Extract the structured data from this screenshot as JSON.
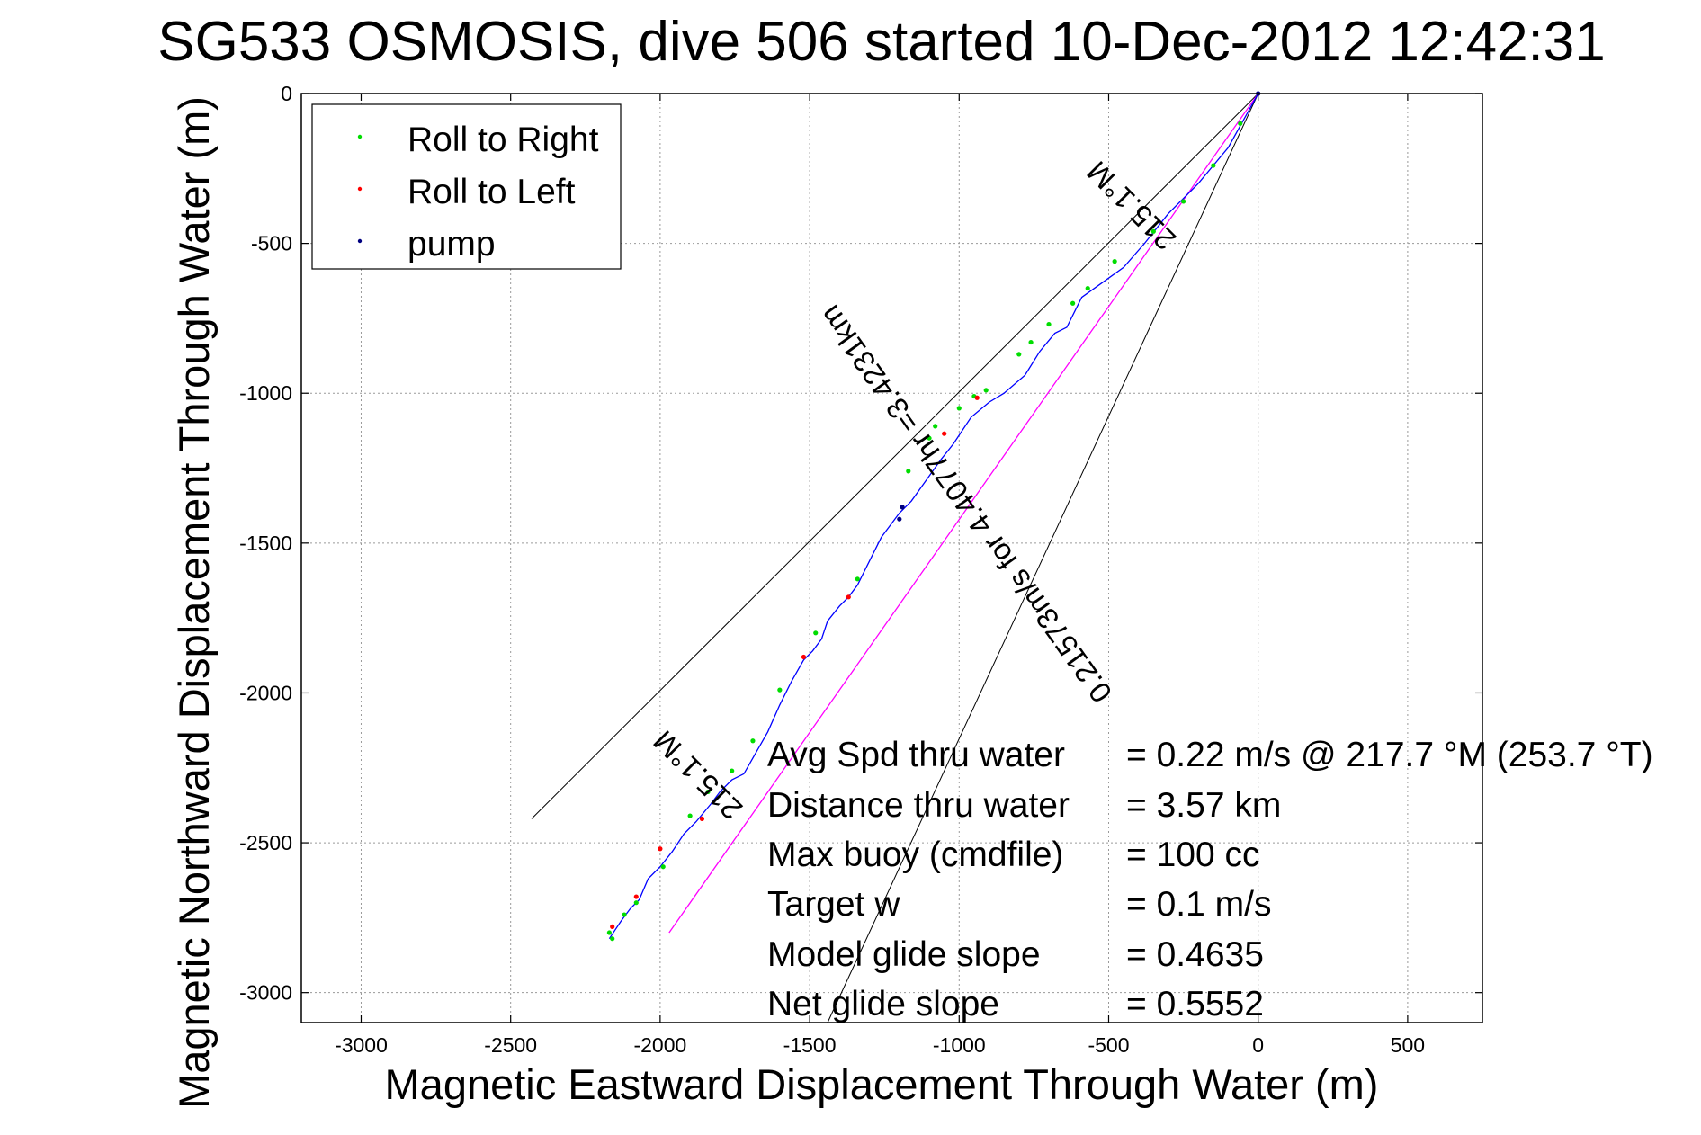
{
  "chart_data": {
    "type": "line",
    "title": "SG533 OSMOSIS, dive 506 started 10-Dec-2012 12:42:31",
    "xlabel": "Magnetic Eastward Displacement Through Water (m)",
    "ylabel": "Magnetic Northward Displacement Through Water (m)",
    "xlim": [
      -3200,
      750
    ],
    "ylim": [
      -3100,
      0
    ],
    "xticks": [
      -3000,
      -2500,
      -2000,
      -1500,
      -1000,
      -500,
      0,
      500
    ],
    "yticks": [
      0,
      -500,
      -1000,
      -1500,
      -2000,
      -2500,
      -3000
    ],
    "grid": true,
    "legend_position": "top-left",
    "colors": {
      "track": "#0000ff",
      "roll_right": "#00dd00",
      "roll_left": "#ff0000",
      "pump": "#000080",
      "current_line": "#ff00ff",
      "heading_lines": "#000000",
      "grid": "#9a9a9a"
    },
    "legend": [
      {
        "label": "Roll to Right",
        "color": "#00dd00"
      },
      {
        "label": "Roll to Left",
        "color": "#ff0000"
      },
      {
        "label": "pump",
        "color": "#000080"
      }
    ],
    "series": [
      {
        "name": "track",
        "x": [
          0,
          -100,
          -200,
          -300,
          -380,
          -450,
          -520,
          -590,
          -640,
          -680,
          -730,
          -780,
          -850,
          -900,
          -960,
          -1020,
          -1060,
          -1110,
          -1160,
          -1200,
          -1260,
          -1300,
          -1340,
          -1370,
          -1400,
          -1440,
          -1460,
          -1490,
          -1520,
          -1560,
          -1600,
          -1640,
          -1680,
          -1720,
          -1760,
          -1800,
          -1830,
          -1880,
          -1920,
          -1960,
          -2000,
          -2040,
          -2070,
          -2100,
          -2130,
          -2150,
          -2170
        ],
        "y": [
          0,
          -180,
          -300,
          -400,
          -500,
          -580,
          -630,
          -680,
          -780,
          -800,
          -860,
          -940,
          -1000,
          -1030,
          -1080,
          -1170,
          -1220,
          -1290,
          -1360,
          -1400,
          -1480,
          -1560,
          -1640,
          -1680,
          -1710,
          -1760,
          -1820,
          -1860,
          -1890,
          -1960,
          -2040,
          -2130,
          -2200,
          -2270,
          -2290,
          -2330,
          -2370,
          -2430,
          -2470,
          -2530,
          -2580,
          -2620,
          -2690,
          -2720,
          -2760,
          -2790,
          -2820
        ]
      },
      {
        "name": "current",
        "x": [
          0,
          -1970
        ],
        "y": [
          0,
          -2800
        ]
      }
    ],
    "markers": {
      "roll_right": {
        "x": [
          -60,
          -150,
          -250,
          -350,
          -480,
          -570,
          -620,
          -700,
          -760,
          -800,
          -910,
          -950,
          -1000,
          -1080,
          -1100,
          -1170,
          -1340,
          -1480,
          -1600,
          -1690,
          -1760,
          -1840,
          -1900,
          -1990,
          -2080,
          -2120,
          -2170,
          -2160
        ],
        "y": [
          -100,
          -240,
          -360,
          -460,
          -560,
          -650,
          -700,
          -770,
          -830,
          -870,
          -990,
          -1010,
          -1050,
          -1110,
          -1150,
          -1260,
          -1620,
          -1800,
          -1990,
          -2160,
          -2260,
          -2330,
          -2410,
          -2580,
          -2700,
          -2740,
          -2800,
          -2820
        ]
      },
      "roll_left": {
        "x": [
          -940,
          -1050,
          -1370,
          -1520,
          -1860,
          -2080,
          -2160,
          -2000
        ],
        "y": [
          -1015,
          -1135,
          -1680,
          -1880,
          -2420,
          -2680,
          -2780,
          -2520
        ]
      },
      "pump": {
        "x": [
          0,
          -1190,
          -1200
        ],
        "y": [
          0,
          -1380,
          -1420
        ]
      }
    },
    "heading_lines": [
      {
        "x": [
          0,
          -2430
        ],
        "y": [
          0,
          -2420
        ]
      },
      {
        "x": [
          0,
          -1440
        ],
        "y": [
          0,
          -3100
        ]
      }
    ],
    "annotations": [
      {
        "text": "215.1°M",
        "x": -400,
        "y": -350
      },
      {
        "text": "0.21573m/s for 4.4077hr =3.4231km",
        "x": -950,
        "y": -1350
      },
      {
        "text": "215.1°M",
        "x": -1850,
        "y": -2250
      }
    ],
    "stats": [
      {
        "label": "Avg Spd thru water",
        "value": "=  0.22 m/s @ 217.7 °M (253.7 °T)"
      },
      {
        "label": "Distance thru water",
        "value": "=  3.57 km"
      },
      {
        "label": "Max buoy (cmdfile)",
        "value": "= 100 cc"
      },
      {
        "label": "Target w",
        "value": "= 0.1 m/s"
      },
      {
        "label": "Model glide slope",
        "value": "= 0.4635"
      },
      {
        "label": "Net glide slope",
        "value": "= 0.5552"
      }
    ]
  }
}
